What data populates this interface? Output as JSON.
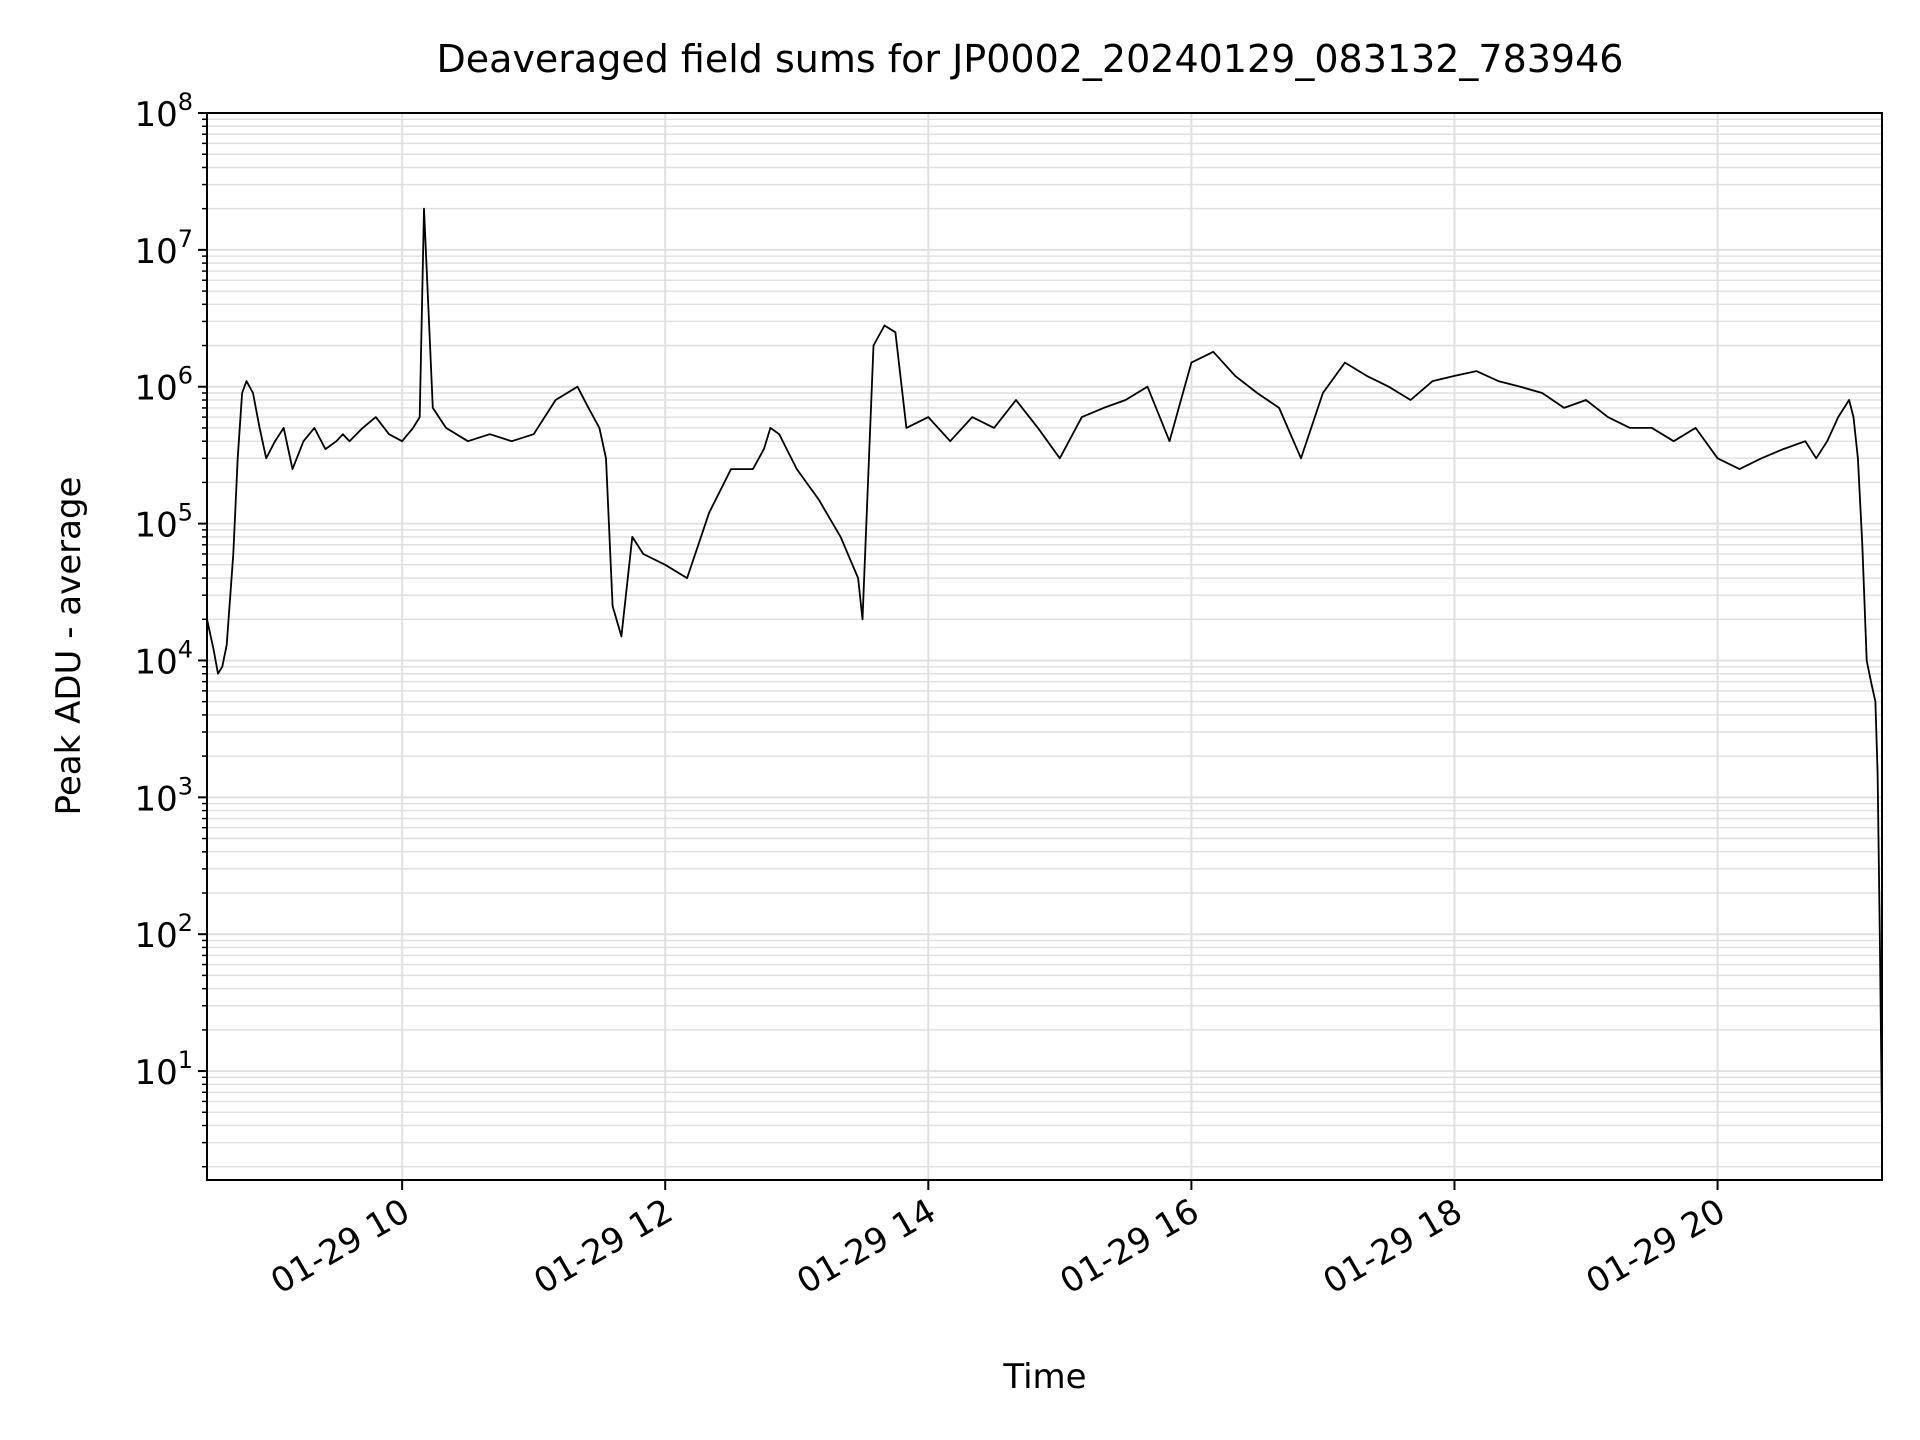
{
  "chart_data": {
    "type": "line",
    "title": "Deaveraged field sums for JP0002_20240129_083132_783946",
    "xlabel": "Time",
    "ylabel": "Peak ADU - average",
    "yscale": "log",
    "ylim": [
      1.6,
      100000000
    ],
    "xlim": [
      "2024-01-29 08:31",
      "2024-01-29 21:15"
    ],
    "grid": true,
    "line_color": "#000000",
    "grid_color": "#e0e0e0",
    "x_ticks": [
      {
        "time": "2024-01-29 10:00",
        "label": "01-29 10"
      },
      {
        "time": "2024-01-29 12:00",
        "label": "01-29 12"
      },
      {
        "time": "2024-01-29 14:00",
        "label": "01-29 14"
      },
      {
        "time": "2024-01-29 16:00",
        "label": "01-29 16"
      },
      {
        "time": "2024-01-29 18:00",
        "label": "01-29 18"
      },
      {
        "time": "2024-01-29 20:00",
        "label": "01-29 20"
      }
    ],
    "y_ticks": [
      {
        "value": 10,
        "base": "10",
        "exp": "1"
      },
      {
        "value": 100,
        "base": "10",
        "exp": "2"
      },
      {
        "value": 1000,
        "base": "10",
        "exp": "3"
      },
      {
        "value": 10000,
        "base": "10",
        "exp": "4"
      },
      {
        "value": 100000,
        "base": "10",
        "exp": "5"
      },
      {
        "value": 1000000,
        "base": "10",
        "exp": "6"
      },
      {
        "value": 10000000,
        "base": "10",
        "exp": "7"
      },
      {
        "value": 100000000,
        "base": "10",
        "exp": "8"
      }
    ],
    "series": [
      {
        "x": [
          "2024-01-29 08:31",
          "2024-01-29 08:34",
          "2024-01-29 08:36",
          "2024-01-29 08:38",
          "2024-01-29 08:40",
          "2024-01-29 08:43",
          "2024-01-29 08:45",
          "2024-01-29 08:47",
          "2024-01-29 08:49",
          "2024-01-29 08:52",
          "2024-01-29 08:55",
          "2024-01-29 08:58",
          "2024-01-29 09:02",
          "2024-01-29 09:06",
          "2024-01-29 09:10",
          "2024-01-29 09:15",
          "2024-01-29 09:20",
          "2024-01-29 09:25",
          "2024-01-29 09:30",
          "2024-01-29 09:33",
          "2024-01-29 09:36",
          "2024-01-29 09:42",
          "2024-01-29 09:48",
          "2024-01-29 09:54",
          "2024-01-29 10:00",
          "2024-01-29 10:05",
          "2024-01-29 10:08",
          "2024-01-29 10:10",
          "2024-01-29 10:14",
          "2024-01-29 10:20",
          "2024-01-29 10:30",
          "2024-01-29 10:40",
          "2024-01-29 10:50",
          "2024-01-29 11:00",
          "2024-01-29 11:10",
          "2024-01-29 11:20",
          "2024-01-29 11:25",
          "2024-01-29 11:30",
          "2024-01-29 11:33",
          "2024-01-29 11:36",
          "2024-01-29 11:40",
          "2024-01-29 11:45",
          "2024-01-29 11:50",
          "2024-01-29 12:00",
          "2024-01-29 12:10",
          "2024-01-29 12:20",
          "2024-01-29 12:30",
          "2024-01-29 12:40",
          "2024-01-29 12:45",
          "2024-01-29 12:48",
          "2024-01-29 12:52",
          "2024-01-29 13:00",
          "2024-01-29 13:10",
          "2024-01-29 13:20",
          "2024-01-29 13:28",
          "2024-01-29 13:30",
          "2024-01-29 13:35",
          "2024-01-29 13:40",
          "2024-01-29 13:45",
          "2024-01-29 13:50",
          "2024-01-29 14:00",
          "2024-01-29 14:10",
          "2024-01-29 14:20",
          "2024-01-29 14:30",
          "2024-01-29 14:40",
          "2024-01-29 14:50",
          "2024-01-29 15:00",
          "2024-01-29 15:10",
          "2024-01-29 15:20",
          "2024-01-29 15:30",
          "2024-01-29 15:40",
          "2024-01-29 15:50",
          "2024-01-29 16:00",
          "2024-01-29 16:10",
          "2024-01-29 16:20",
          "2024-01-29 16:30",
          "2024-01-29 16:40",
          "2024-01-29 16:50",
          "2024-01-29 17:00",
          "2024-01-29 17:10",
          "2024-01-29 17:20",
          "2024-01-29 17:30",
          "2024-01-29 17:40",
          "2024-01-29 17:50",
          "2024-01-29 18:00",
          "2024-01-29 18:10",
          "2024-01-29 18:20",
          "2024-01-29 18:30",
          "2024-01-29 18:40",
          "2024-01-29 18:50",
          "2024-01-29 19:00",
          "2024-01-29 19:10",
          "2024-01-29 19:20",
          "2024-01-29 19:30",
          "2024-01-29 19:40",
          "2024-01-29 19:50",
          "2024-01-29 20:00",
          "2024-01-29 20:10",
          "2024-01-29 20:20",
          "2024-01-29 20:30",
          "2024-01-29 20:40",
          "2024-01-29 20:45",
          "2024-01-29 20:50",
          "2024-01-29 20:55",
          "2024-01-29 21:00",
          "2024-01-29 21:02",
          "2024-01-29 21:04",
          "2024-01-29 21:06",
          "2024-01-29 21:08",
          "2024-01-29 21:10",
          "2024-01-29 21:12",
          "2024-01-29 21:13",
          "2024-01-29 21:14",
          "2024-01-29 21:15"
        ],
        "y": [
          20000,
          12000,
          8000,
          9000,
          13000,
          60000,
          300000,
          900000,
          1100000,
          900000,
          500000,
          300000,
          400000,
          500000,
          250000,
          400000,
          500000,
          350000,
          400000,
          450000,
          400000,
          500000,
          600000,
          450000,
          400000,
          500000,
          600000,
          20000000,
          700000,
          500000,
          400000,
          450000,
          400000,
          450000,
          800000,
          1000000,
          700000,
          500000,
          300000,
          25000,
          15000,
          80000,
          60000,
          50000,
          40000,
          120000,
          250000,
          250000,
          350000,
          500000,
          450000,
          250000,
          150000,
          80000,
          40000,
          20000,
          2000000,
          2800000,
          2500000,
          500000,
          600000,
          400000,
          600000,
          500000,
          800000,
          500000,
          300000,
          600000,
          700000,
          800000,
          1000000,
          400000,
          1500000,
          1800000,
          1200000,
          900000,
          700000,
          300000,
          900000,
          1500000,
          1200000,
          1000000,
          800000,
          1100000,
          1200000,
          1300000,
          1100000,
          1000000,
          900000,
          700000,
          800000,
          600000,
          500000,
          500000,
          400000,
          500000,
          300000,
          250000,
          300000,
          350000,
          400000,
          300000,
          400000,
          600000,
          800000,
          600000,
          300000,
          70000,
          10000,
          7000,
          5000,
          1500,
          100,
          4
        ]
      }
    ]
  }
}
